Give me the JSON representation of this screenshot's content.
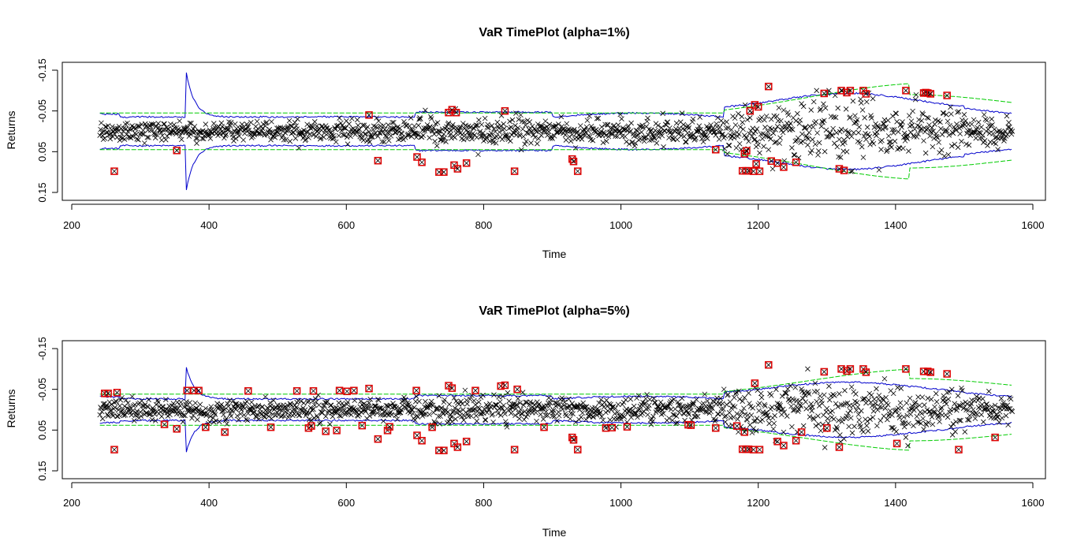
{
  "colors": {
    "returns_marker": "#000000",
    "exceedance_marker": "#e00000",
    "var_bound_line": "#0000cc",
    "reference_band_line": "#00cc00",
    "background": "#ffffff"
  },
  "chart_data": [
    {
      "type": "scatter",
      "title": "VaR TimePlot (alpha=1%)",
      "xlabel": "Time",
      "ylabel": "Returns",
      "xlim": [
        200,
        1600
      ],
      "ylim": [
        0.15,
        -0.15
      ],
      "xticks": [
        "200",
        "400",
        "600",
        "800",
        "1000",
        "1200",
        "1400",
        "1600"
      ],
      "yticks": [
        "-0.15",
        "-0.05",
        "0.05",
        "0.15"
      ],
      "x_range_of_series": [
        241,
        1570
      ],
      "series": [
        {
          "marker": "x",
          "color": "#000000",
          "values_description": ""
        },
        {
          "marker": "boxed-x",
          "color": "#e00000",
          "points": [
            [
              262,
              0.098
            ],
            [
              353,
              0.047
            ],
            [
              633,
              -0.04
            ],
            [
              646,
              0.072
            ],
            [
              703,
              0.063
            ],
            [
              710,
              0.076
            ],
            [
              735,
              0.1
            ],
            [
              742,
              0.1
            ],
            [
              749,
              -0.046
            ],
            [
              754,
              -0.053
            ],
            [
              757,
              0.083
            ],
            [
              760,
              -0.046
            ],
            [
              762,
              0.092
            ],
            [
              775,
              0.078
            ],
            [
              831,
              -0.05
            ],
            [
              845,
              0.098
            ],
            [
              929,
              0.068
            ],
            [
              931,
              0.074
            ],
            [
              937,
              0.098
            ],
            [
              1138,
              0.045
            ],
            [
              1177,
              0.097
            ],
            [
              1180,
              0.055
            ],
            [
              1182,
              0.097
            ],
            [
              1183,
              0.048
            ],
            [
              1186,
              0.097
            ],
            [
              1188,
              -0.05
            ],
            [
              1193,
              0.098
            ],
            [
              1195,
              -0.065
            ],
            [
              1197,
              0.08
            ],
            [
              1200,
              -0.06
            ],
            [
              1202,
              0.098
            ],
            [
              1215,
              -0.11
            ],
            [
              1219,
              0.073
            ],
            [
              1228,
              0.078
            ],
            [
              1237,
              0.088
            ],
            [
              1255,
              0.076
            ],
            [
              1296,
              -0.093
            ],
            [
              1318,
              0.092
            ],
            [
              1321,
              -0.1
            ],
            [
              1325,
              0.096
            ],
            [
              1329,
              -0.095
            ],
            [
              1334,
              -0.1
            ],
            [
              1353,
              -0.1
            ],
            [
              1357,
              -0.092
            ],
            [
              1415,
              -0.1
            ],
            [
              1441,
              -0.094
            ],
            [
              1444,
              -0.095
            ],
            [
              1447,
              -0.094
            ],
            [
              1451,
              -0.092
            ],
            [
              1475,
              -0.088
            ]
          ]
        }
      ]
    },
    {
      "type": "scatter",
      "title": "VaR TimePlot (alpha=5%)",
      "xlabel": "Time",
      "ylabel": "Returns",
      "xlim": [
        200,
        1600
      ],
      "ylim": [
        0.15,
        -0.15
      ],
      "xticks": [
        "200",
        "400",
        "600",
        "800",
        "1000",
        "1200",
        "1400",
        "1600"
      ],
      "yticks": [
        "-0.15",
        "-0.05",
        "0.05",
        "0.15"
      ],
      "x_range_of_series": [
        241,
        1570
      ],
      "series": [
        {
          "marker": "x",
          "color": "#000000",
          "values_description": ""
        },
        {
          "marker": "boxed-x",
          "color": "#e00000",
          "points": [
            [
              248,
              -0.04
            ],
            [
              253,
              -0.04
            ],
            [
              262,
              0.098
            ],
            [
              266,
              -0.042
            ],
            [
              335,
              0.036
            ],
            [
              353,
              0.047
            ],
            [
              368,
              -0.047
            ],
            [
              378,
              -0.047
            ],
            [
              385,
              -0.047
            ],
            [
              395,
              0.043
            ],
            [
              423,
              0.055
            ],
            [
              457,
              -0.046
            ],
            [
              490,
              0.043
            ],
            [
              528,
              -0.046
            ],
            [
              545,
              0.045
            ],
            [
              549,
              0.04
            ],
            [
              552,
              -0.046
            ],
            [
              570,
              0.053
            ],
            [
              586,
              0.051
            ],
            [
              590,
              -0.047
            ],
            [
              601,
              -0.045
            ],
            [
              611,
              -0.047
            ],
            [
              623,
              0.039
            ],
            [
              633,
              -0.052
            ],
            [
              646,
              0.072
            ],
            [
              660,
              0.051
            ],
            [
              663,
              0.042
            ],
            [
              702,
              -0.047
            ],
            [
              703,
              0.063
            ],
            [
              710,
              0.076
            ],
            [
              725,
              0.043
            ],
            [
              735,
              0.1
            ],
            [
              742,
              0.1
            ],
            [
              749,
              -0.059
            ],
            [
              754,
              -0.053
            ],
            [
              757,
              0.083
            ],
            [
              762,
              0.092
            ],
            [
              775,
              0.078
            ],
            [
              788,
              -0.047
            ],
            [
              825,
              -0.058
            ],
            [
              831,
              -0.06
            ],
            [
              845,
              0.098
            ],
            [
              849,
              -0.05
            ],
            [
              888,
              0.043
            ],
            [
              929,
              0.068
            ],
            [
              931,
              0.074
            ],
            [
              937,
              0.098
            ],
            [
              978,
              0.045
            ],
            [
              987,
              0.044
            ],
            [
              1009,
              0.042
            ],
            [
              1098,
              0.037
            ],
            [
              1102,
              0.038
            ],
            [
              1138,
              0.045
            ],
            [
              1169,
              0.04
            ],
            [
              1177,
              0.097
            ],
            [
              1180,
              0.055
            ],
            [
              1182,
              0.097
            ],
            [
              1186,
              0.097
            ],
            [
              1193,
              0.098
            ],
            [
              1195,
              -0.065
            ],
            [
              1202,
              0.098
            ],
            [
              1215,
              -0.11
            ],
            [
              1228,
              0.078
            ],
            [
              1237,
              0.088
            ],
            [
              1255,
              0.076
            ],
            [
              1263,
              0.055
            ],
            [
              1296,
              -0.093
            ],
            [
              1300,
              0.045
            ],
            [
              1318,
              0.092
            ],
            [
              1321,
              -0.1
            ],
            [
              1329,
              -0.095
            ],
            [
              1334,
              -0.1
            ],
            [
              1353,
              -0.1
            ],
            [
              1357,
              -0.092
            ],
            [
              1402,
              0.083
            ],
            [
              1415,
              -0.1
            ],
            [
              1441,
              -0.094
            ],
            [
              1447,
              -0.094
            ],
            [
              1451,
              -0.092
            ],
            [
              1475,
              -0.088
            ],
            [
              1492,
              0.098
            ],
            [
              1545,
              0.068
            ]
          ]
        }
      ]
    }
  ]
}
